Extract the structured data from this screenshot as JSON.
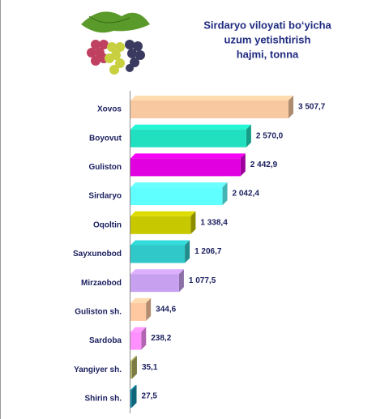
{
  "chart_data": {
    "type": "bar",
    "orientation": "horizontal",
    "title": [
      "Sirdaryo viloyati bo‘yicha",
      "uzum yetishtirish",
      "hajmi, tonna"
    ],
    "categories": [
      "Xovos",
      "Boyovut",
      "Guliston",
      "Sirdaryo",
      "Oqoltin",
      "Sayxunobod",
      "Mirzaobod",
      "Guliston sh.",
      "Sardoba",
      "Yangiyer sh.",
      "Shirin sh."
    ],
    "values": [
      3507.7,
      2570.0,
      2442.9,
      2042.4,
      1338.4,
      1206.7,
      1077.5,
      344.6,
      238.2,
      35.1,
      27.5
    ],
    "value_labels": [
      "3 507,7",
      "2 570,0",
      "2 442,9",
      "2 042,4",
      "1 338,4",
      "1 206,7",
      "1 077,5",
      "344,6",
      "238,2",
      "35,1",
      "27,5"
    ],
    "colors": [
      "#f8c8a0",
      "#20e0c0",
      "#e000e0",
      "#60ffff",
      "#c8c800",
      "#30c8c8",
      "#c8a0f0",
      "#ffc8a0",
      "#ff90ff",
      "#b0b060",
      "#1890b0"
    ]
  }
}
